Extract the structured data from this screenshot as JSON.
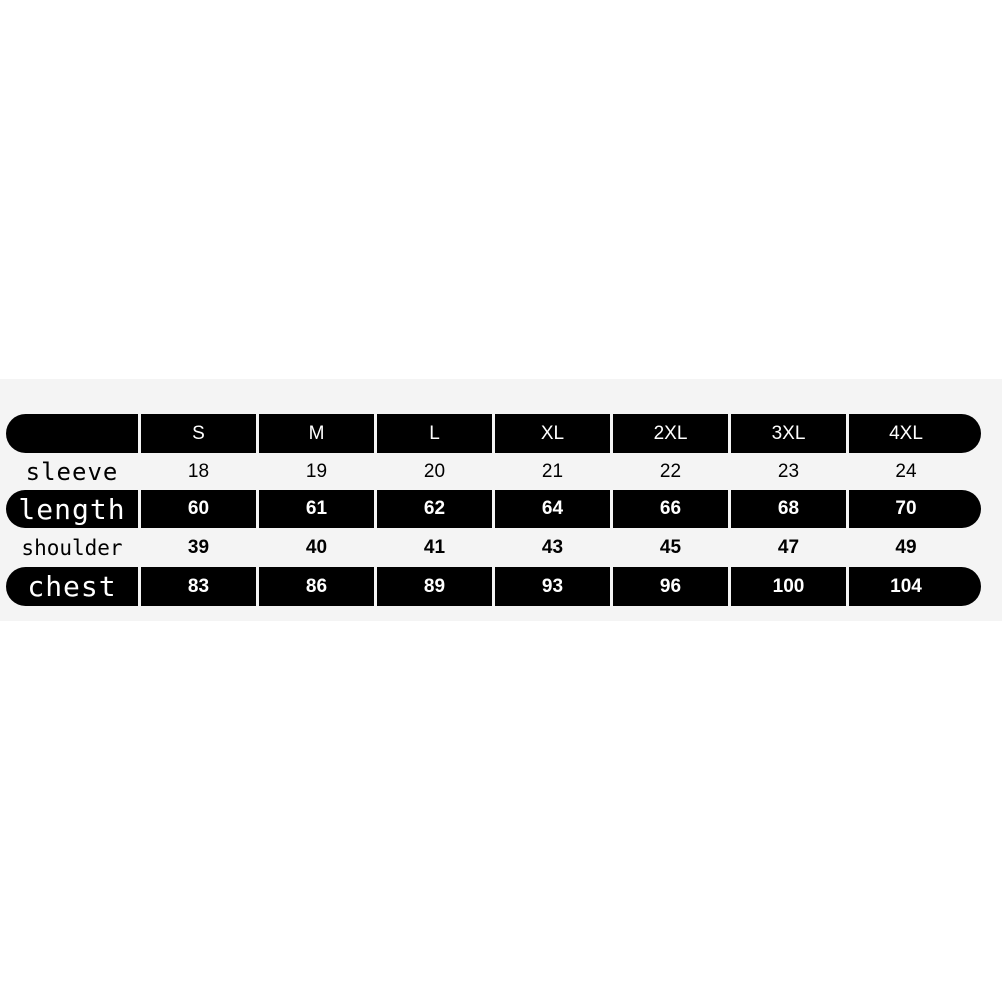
{
  "sizes": [
    "S",
    "M",
    "L",
    "XL",
    "2XL",
    "3XL",
    "4XL"
  ],
  "rows": [
    {
      "label": "sleeve",
      "values": [
        "18",
        "19",
        "20",
        "21",
        "22",
        "23",
        "24"
      ]
    },
    {
      "label": "length",
      "values": [
        "60",
        "61",
        "62",
        "64",
        "66",
        "68",
        "70"
      ]
    },
    {
      "label": "shoulder",
      "values": [
        "39",
        "40",
        "41",
        "43",
        "45",
        "47",
        "49"
      ]
    },
    {
      "label": "chest",
      "values": [
        "83",
        "86",
        "89",
        "93",
        "96",
        "100",
        "104"
      ]
    }
  ],
  "colors": {
    "dark": "#000000",
    "background": "#f4f4f4"
  }
}
